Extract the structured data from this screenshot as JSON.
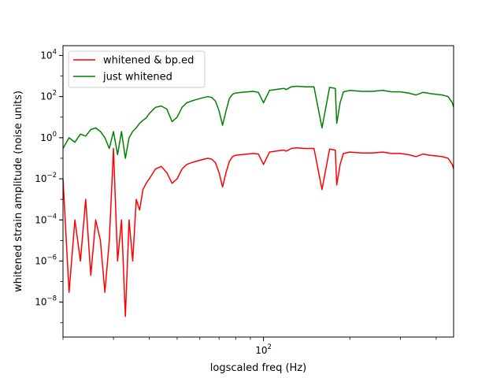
{
  "chart_data": {
    "type": "line",
    "title": "",
    "xlabel": "logscaled freq (Hz)",
    "ylabel": "whitened strain amplitude (noise units)",
    "xscale": "log",
    "yscale": "log",
    "xlim": [
      20,
      460
    ],
    "ylim": [
      2e-10,
      30000.0
    ],
    "x_ticks": [
      {
        "value": 100,
        "base": "10",
        "exp": "2"
      }
    ],
    "y_ticks": [
      {
        "value": 1e-08,
        "base": "10",
        "exp": "−8"
      },
      {
        "value": 1e-06,
        "base": "10",
        "exp": "−6"
      },
      {
        "value": 0.0001,
        "base": "10",
        "exp": "−4"
      },
      {
        "value": 0.01,
        "base": "10",
        "exp": "−2"
      },
      {
        "value": 1,
        "base": "10",
        "exp": "0"
      },
      {
        "value": 100,
        "base": "10",
        "exp": "2"
      },
      {
        "value": 10000,
        "base": "10",
        "exp": "4"
      }
    ],
    "legend_position": "top-left",
    "grid": false,
    "series": [
      {
        "name": "whitened & bp.ed",
        "color": "#ff0000",
        "x": [
          20,
          21,
          22,
          23,
          24,
          25,
          26,
          27,
          28,
          29,
          30,
          31,
          32,
          33,
          34,
          35,
          36,
          37,
          38,
          39,
          40,
          42,
          44,
          46,
          48,
          50,
          52,
          54,
          56,
          58,
          60,
          62,
          64,
          66,
          68,
          70,
          72,
          74,
          76,
          78,
          80,
          84,
          88,
          92,
          96,
          100,
          105,
          110,
          115,
          118,
          120,
          125,
          130,
          140,
          150,
          160,
          170,
          175,
          178,
          180,
          185,
          190,
          200,
          220,
          240,
          260,
          280,
          300,
          320,
          340,
          360,
          380,
          400,
          420,
          440,
          455,
          460
        ],
        "y": [
          0.01,
          3e-08,
          0.0001,
          1e-06,
          0.001,
          2e-07,
          0.0001,
          1e-05,
          3e-08,
          1e-05,
          0.3,
          1e-06,
          0.0001,
          2e-09,
          0.0001,
          1e-06,
          0.001,
          0.0003,
          0.003,
          0.006,
          0.01,
          0.03,
          0.04,
          0.02,
          0.006,
          0.01,
          0.03,
          0.05,
          0.06,
          0.07,
          0.08,
          0.09,
          0.1,
          0.09,
          0.06,
          0.02,
          0.004,
          0.02,
          0.07,
          0.12,
          0.14,
          0.15,
          0.16,
          0.17,
          0.16,
          0.05,
          0.2,
          0.22,
          0.24,
          0.25,
          0.22,
          0.3,
          0.32,
          0.3,
          0.3,
          0.003,
          0.28,
          0.26,
          0.25,
          0.005,
          0.05,
          0.17,
          0.2,
          0.18,
          0.18,
          0.2,
          0.17,
          0.17,
          0.15,
          0.12,
          0.16,
          0.14,
          0.13,
          0.12,
          0.1,
          0.05,
          0.03
        ]
      },
      {
        "name": "just whitened",
        "color": "#008000",
        "x": [
          20,
          21,
          22,
          23,
          24,
          25,
          26,
          27,
          28,
          29,
          30,
          31,
          32,
          33,
          34,
          35,
          36,
          37,
          38,
          39,
          40,
          42,
          44,
          46,
          48,
          50,
          52,
          54,
          56,
          58,
          60,
          62,
          64,
          66,
          68,
          70,
          72,
          74,
          76,
          78,
          80,
          84,
          88,
          92,
          96,
          100,
          105,
          110,
          115,
          118,
          120,
          125,
          130,
          140,
          150,
          160,
          170,
          175,
          178,
          180,
          185,
          190,
          200,
          220,
          240,
          260,
          280,
          300,
          320,
          340,
          360,
          380,
          400,
          420,
          440,
          455,
          460
        ],
        "y": [
          0.3,
          1.0,
          0.6,
          1.5,
          1.2,
          2.5,
          3.0,
          2.0,
          1.0,
          0.3,
          2.0,
          0.15,
          2.0,
          0.1,
          1.0,
          2.0,
          3.0,
          5.0,
          7.0,
          9.0,
          15,
          30,
          35,
          25,
          6,
          10,
          30,
          50,
          60,
          70,
          80,
          90,
          100,
          90,
          60,
          20,
          4,
          20,
          80,
          130,
          150,
          160,
          170,
          180,
          160,
          50,
          200,
          220,
          240,
          250,
          220,
          300,
          320,
          300,
          300,
          3,
          280,
          260,
          250,
          5,
          50,
          170,
          200,
          180,
          180,
          200,
          170,
          170,
          150,
          120,
          160,
          140,
          130,
          120,
          100,
          50,
          30
        ]
      }
    ]
  }
}
